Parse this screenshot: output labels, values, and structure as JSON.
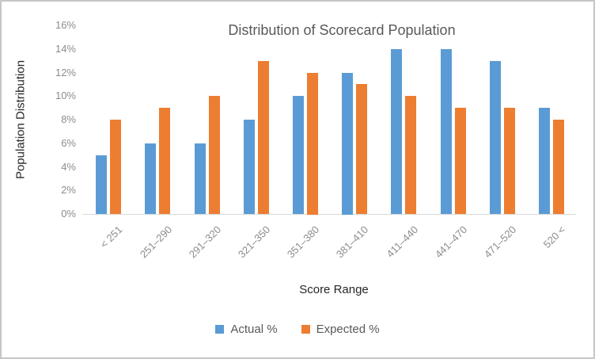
{
  "chart_data": {
    "type": "bar",
    "title": "Distribution of Scorecard Population",
    "xlabel": "Score Range",
    "ylabel": "Population Distribution",
    "categories": [
      "< 251",
      "251–290",
      "291–320",
      "321–350",
      "351–380",
      "381–410",
      "411–440",
      "441–470",
      "471–520",
      "520 <"
    ],
    "series": [
      {
        "name": "Actual %",
        "color": "#5B9BD5",
        "values": [
          5,
          6,
          6,
          8,
          10,
          12,
          14,
          14,
          13,
          9
        ]
      },
      {
        "name": "Expected %",
        "color": "#ED7D31",
        "values": [
          8,
          9,
          10,
          13,
          12,
          11,
          10,
          9,
          9,
          8
        ]
      }
    ],
    "ylim": [
      0,
      16
    ],
    "ytick_step": 2,
    "ytick_labels": [
      "0%",
      "2%",
      "4%",
      "6%",
      "8%",
      "10%",
      "12%",
      "14%",
      "16%"
    ],
    "grid": false,
    "legend_position": "bottom"
  },
  "colors": {
    "title_text": "#595959",
    "axis_title_text": "#262626",
    "tick_text": "#8c8c8c",
    "axis_line": "#d9d9d9",
    "frame_border": "#c6c6c6",
    "background": "#ffffff"
  }
}
